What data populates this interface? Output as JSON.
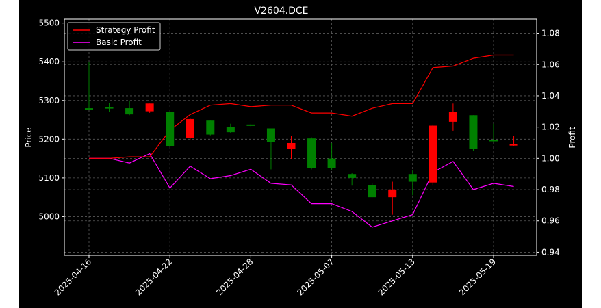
{
  "chart_data": {
    "type": "candlestick_with_lines",
    "title": "V2604.DCE",
    "ylabel_left": "Price",
    "ylabel_right": "Profit",
    "ylim_left": [
      4900,
      5510
    ],
    "ylim_right": [
      0.938,
      1.089
    ],
    "yticks_left": [
      5000,
      5100,
      5200,
      5300,
      5400,
      5500
    ],
    "yticks_right": [
      0.94,
      0.96,
      0.98,
      1.0,
      1.02,
      1.04,
      1.06,
      1.08
    ],
    "ytick_labels_right": [
      "0.94",
      "0.96",
      "0.98",
      "1.00",
      "1.02",
      "1.04",
      "1.06",
      "1.08"
    ],
    "xtick_labels": [
      {
        "index": 0,
        "label": "2025-04-16"
      },
      {
        "index": 4,
        "label": "2025-04-22"
      },
      {
        "index": 8,
        "label": "2025-04-28"
      },
      {
        "index": 12,
        "label": "2025-05-07"
      },
      {
        "index": 16,
        "label": "2025-05-13"
      },
      {
        "index": 20,
        "label": "2025-05-19"
      }
    ],
    "grid": true,
    "legend_placement": "upper-left",
    "colors": {
      "up": "#ff0000",
      "down": "#008000",
      "strategy": "#ff0000",
      "basic": "#ff00ff",
      "grid": "#5a5a5a",
      "axes": "#ffffff"
    },
    "candles": [
      {
        "o": 5280,
        "h": 5400,
        "l": 5275,
        "c": 5279
      },
      {
        "o": 5283,
        "h": 5293,
        "l": 5270,
        "c": 5279
      },
      {
        "o": 5280,
        "h": 5300,
        "l": 5262,
        "c": 5264
      },
      {
        "o": 5272,
        "h": 5292,
        "l": 5268,
        "c": 5292
      },
      {
        "o": 5270,
        "h": 5270,
        "l": 5180,
        "c": 5182
      },
      {
        "o": 5203,
        "h": 5255,
        "l": 5198,
        "c": 5252
      },
      {
        "o": 5248,
        "h": 5248,
        "l": 5210,
        "c": 5212
      },
      {
        "o": 5232,
        "h": 5240,
        "l": 5216,
        "c": 5218
      },
      {
        "o": 5238,
        "h": 5240,
        "l": 5232,
        "c": 5235
      },
      {
        "o": 5228,
        "h": 5228,
        "l": 5122,
        "c": 5192
      },
      {
        "o": 5175,
        "h": 5208,
        "l": 5148,
        "c": 5190
      },
      {
        "o": 5202,
        "h": 5205,
        "l": 5122,
        "c": 5126
      },
      {
        "o": 5150,
        "h": 5190,
        "l": 5120,
        "c": 5125
      },
      {
        "o": 5110,
        "h": 5112,
        "l": 5080,
        "c": 5100
      },
      {
        "o": 5082,
        "h": 5086,
        "l": 5050,
        "c": 5050
      },
      {
        "o": 5050,
        "h": 5090,
        "l": 5005,
        "c": 5070
      },
      {
        "o": 5110,
        "h": 5120,
        "l": 5055,
        "c": 5090
      },
      {
        "o": 5088,
        "h": 5238,
        "l": 5080,
        "c": 5235
      },
      {
        "o": 5245,
        "h": 5292,
        "l": 5222,
        "c": 5270
      },
      {
        "o": 5262,
        "h": 5262,
        "l": 5170,
        "c": 5175
      },
      {
        "o": 5198,
        "h": 5240,
        "l": 5193,
        "c": 5196
      },
      {
        "o": 5185,
        "h": 5208,
        "l": 5183,
        "c": 5187
      }
    ],
    "series": [
      {
        "name": "Strategy Profit",
        "values": [
          1.0,
          1.0,
          1.001,
          1.001,
          1.018,
          1.028,
          1.034,
          1.035,
          1.033,
          1.034,
          1.034,
          1.029,
          1.029,
          1.027,
          1.032,
          1.035,
          1.035,
          1.058,
          1.059,
          1.064,
          1.066,
          1.066
        ]
      },
      {
        "name": "Basic Profit",
        "values": [
          1.0,
          1.0,
          0.997,
          1.003,
          0.981,
          0.995,
          0.987,
          0.989,
          0.993,
          0.984,
          0.983,
          0.971,
          0.971,
          0.966,
          0.956,
          0.96,
          0.964,
          0.991,
          0.998,
          0.98,
          0.984,
          0.982
        ]
      }
    ]
  }
}
